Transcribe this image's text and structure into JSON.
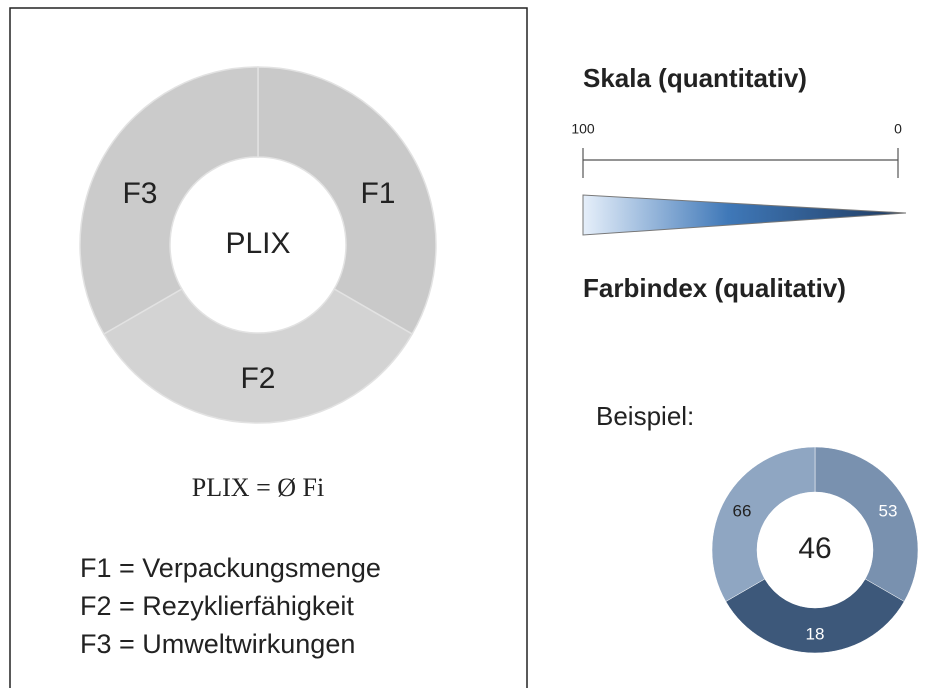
{
  "plix": {
    "segments": [
      {
        "label": "F1"
      },
      {
        "label": "F2"
      },
      {
        "label": "F3"
      }
    ],
    "center": "PLIX",
    "formula": "PLIX = Ø Fi",
    "definitions": [
      "F1 = Verpackungsmenge",
      "F2 = Rezyklierfähigkeit",
      "F3 = Umweltwirkungen"
    ]
  },
  "scale": {
    "title": "Skala (quantitativ)",
    "start": 100,
    "end": 0,
    "color_title": "Farbindex (qualitativ)"
  },
  "example": {
    "title": "Beispiel:",
    "values": [
      53,
      18,
      66
    ],
    "center": 46
  }
}
